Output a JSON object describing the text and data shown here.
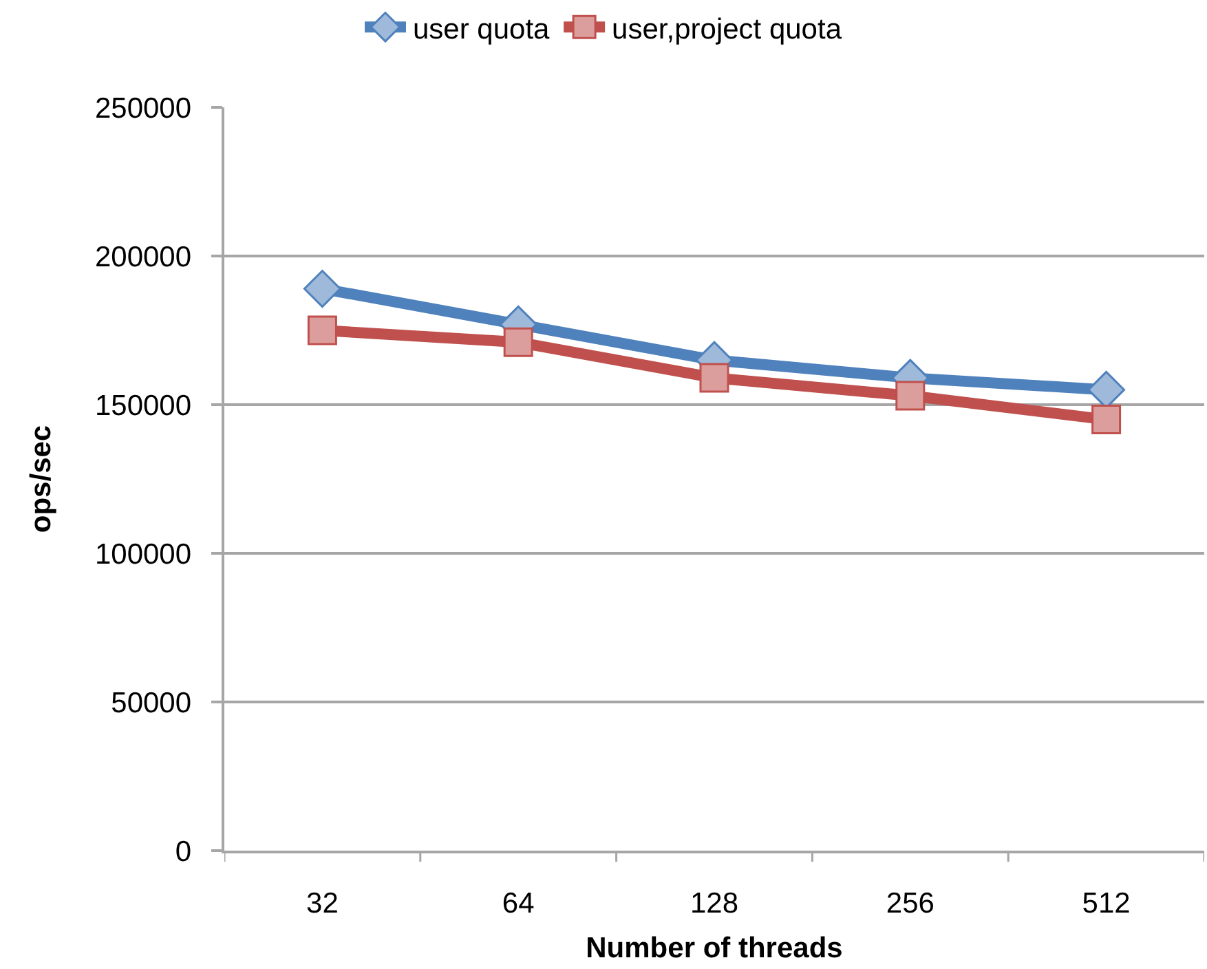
{
  "chart_data": {
    "type": "line",
    "xlabel": "Number of threads",
    "ylabel": "ops/sec",
    "categories": [
      "32",
      "64",
      "128",
      "256",
      "512"
    ],
    "series": [
      {
        "name": "user quota",
        "color": "#4f81bd",
        "marker": "diamond",
        "values": [
          189000,
          177000,
          165000,
          159000,
          155000
        ]
      },
      {
        "name": "user,project quota",
        "color": "#c0504d",
        "marker": "square",
        "values": [
          175000,
          171000,
          159000,
          153000,
          145000
        ]
      }
    ],
    "ylim": [
      0,
      250000
    ],
    "yticks": [
      0,
      50000,
      100000,
      150000,
      200000,
      250000
    ],
    "grid": "y",
    "legend": "top",
    "line_style": "solid"
  }
}
